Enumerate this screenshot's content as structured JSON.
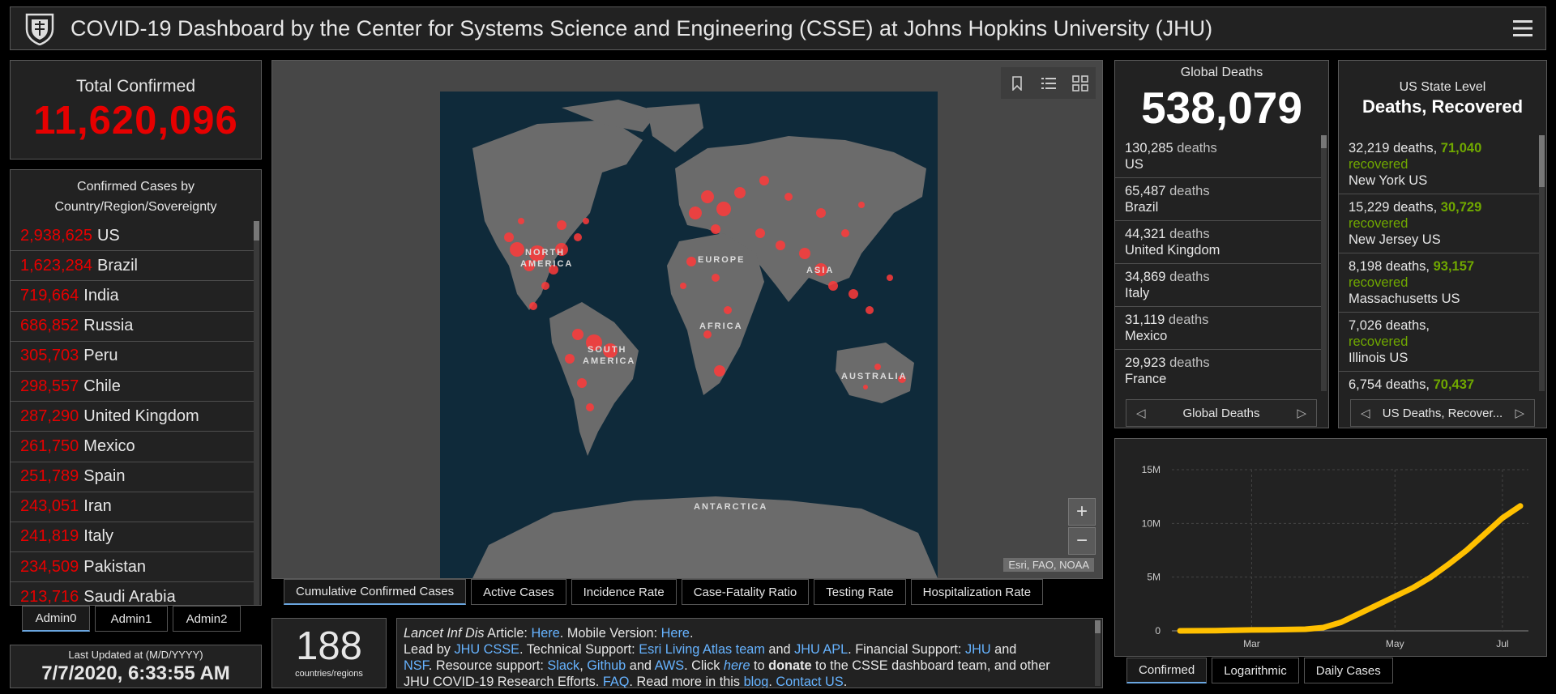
{
  "header": {
    "title": "COVID-19 Dashboard by the Center for Systems Science and Engineering (CSSE) at Johns Hopkins University (JHU)"
  },
  "total": {
    "label": "Total Confirmed",
    "value": "11,620,096"
  },
  "countries": {
    "header_line1": "Confirmed Cases by",
    "header_line2": "Country/Region/Sovereignty",
    "rows": [
      {
        "num": "2,938,625",
        "name": "US"
      },
      {
        "num": "1,623,284",
        "name": "Brazil"
      },
      {
        "num": "719,664",
        "name": "India"
      },
      {
        "num": "686,852",
        "name": "Russia"
      },
      {
        "num": "305,703",
        "name": "Peru"
      },
      {
        "num": "298,557",
        "name": "Chile"
      },
      {
        "num": "287,290",
        "name": "United Kingdom"
      },
      {
        "num": "261,750",
        "name": "Mexico"
      },
      {
        "num": "251,789",
        "name": "Spain"
      },
      {
        "num": "243,051",
        "name": "Iran"
      },
      {
        "num": "241,819",
        "name": "Italy"
      },
      {
        "num": "234,509",
        "name": "Pakistan"
      },
      {
        "num": "213,716",
        "name": "Saudi Arabia"
      }
    ]
  },
  "admin_tabs": [
    "Admin0",
    "Admin1",
    "Admin2"
  ],
  "updated": {
    "label": "Last Updated at (M/D/YYYY)",
    "value": "7/7/2020, 6:33:55 AM"
  },
  "map": {
    "labels": {
      "north_america_1": "NORTH",
      "north_america_2": "AMERICA",
      "south_america_1": "SOUTH",
      "south_america_2": "AMERICA",
      "europe": "EUROPE",
      "asia": "ASIA",
      "africa": "AFRICA",
      "australia": "AUSTRALIA",
      "antarctica": "ANTARCTICA"
    },
    "attribution": "Esri, FAO, NOAA",
    "zoom_in": "+",
    "zoom_out": "−",
    "tabs": [
      "Cumulative Confirmed Cases",
      "Active Cases",
      "Incidence Rate",
      "Case-Fatality Ratio",
      "Testing Rate",
      "Hospitalization Rate"
    ]
  },
  "count": {
    "value": "188",
    "label": "countries/regions"
  },
  "info": {
    "l1a": "Lancet Inf Dis",
    "l1b": " Article: ",
    "l1c": "Here",
    "l1d": ". Mobile Version: ",
    "l1e": "Here",
    "l1f": ".",
    "l2a": "Lead by ",
    "l2b": "JHU CSSE",
    "l2c": ". Technical Support: ",
    "l2d": "Esri Living Atlas team",
    "l2e": " and ",
    "l2f": "JHU APL",
    "l2g": ". Financial Support: ",
    "l2h": "JHU",
    "l2i": " and",
    "l3a": "NSF",
    "l3b": ". Resource support: ",
    "l3c": "Slack",
    "l3d": ", ",
    "l3e": "Github",
    "l3f": " and ",
    "l3g": "AWS",
    "l3h": ". Click ",
    "l3i": "here",
    "l3j": " to ",
    "l3k": "donate",
    "l3l": " to the CSSE dashboard team, and other",
    "l4a": "JHU COVID-19 Research Efforts. ",
    "l4b": "FAQ",
    "l4c": ". Read more in this ",
    "l4d": "blog",
    "l4e": ". ",
    "l4f": "Contact US",
    "l4g": "."
  },
  "deaths": {
    "label": "Global Deaths",
    "value": "538,079",
    "word": "deaths",
    "rows": [
      {
        "num": "130,285",
        "loc": "US"
      },
      {
        "num": "65,487",
        "loc": "Brazil"
      },
      {
        "num": "44,321",
        "loc": "United Kingdom"
      },
      {
        "num": "34,869",
        "loc": "Italy"
      },
      {
        "num": "31,119",
        "loc": "Mexico"
      },
      {
        "num": "29,923",
        "loc": "France"
      }
    ],
    "pager_label": "Global Deaths"
  },
  "usstate": {
    "label": "US State Level",
    "sub": "Deaths, Recovered",
    "word": "deaths,",
    "rec_word": "recovered",
    "rows": [
      {
        "num": "32,219",
        "rec": "71,040",
        "loc": "New York US"
      },
      {
        "num": "15,229",
        "rec": "30,729",
        "loc": "New Jersey US"
      },
      {
        "num": "8,198",
        "rec": "93,157",
        "loc": "Massachusetts US"
      },
      {
        "num": "7,026",
        "rec": "",
        "loc": "Illinois US"
      },
      {
        "num": "6,754",
        "rec": "70,437",
        "loc": ""
      }
    ],
    "pager_label": "US Deaths, Recover..."
  },
  "chart_tabs": [
    "Confirmed",
    "Logarithmic",
    "Daily Cases"
  ],
  "colors": {
    "confirmed": "#e60000",
    "recovered": "#70a800",
    "link": "#66b3ff",
    "curve": "#ffc000"
  },
  "chart_data": {
    "type": "line",
    "series": [
      {
        "values": [
          0,
          0.01,
          0.02,
          0.05,
          0.08,
          0.1,
          0.12,
          0.15,
          0.3,
          0.8,
          1.6,
          2.4,
          3.2,
          4.0,
          5.0,
          6.2,
          7.5,
          9.0,
          10.5,
          11.62
        ]
      }
    ],
    "x": [
      "Jan 22",
      "Feb 1",
      "Feb 10",
      "Feb 20",
      "Mar 1",
      "Mar 10",
      "Mar 15",
      "Mar 20",
      "Mar 25",
      "Apr 1",
      "Apr 10",
      "Apr 20",
      "May 1",
      "May 10",
      "May 20",
      "Jun 1",
      "Jun 10",
      "Jun 20",
      "Jul 1",
      "Jul 7"
    ],
    "x_ticks": [
      "Mar",
      "May",
      "Jul"
    ],
    "y_ticks": [
      "0",
      "5M",
      "10M",
      "15M"
    ],
    "ylim": [
      0,
      15
    ],
    "grid": true
  }
}
